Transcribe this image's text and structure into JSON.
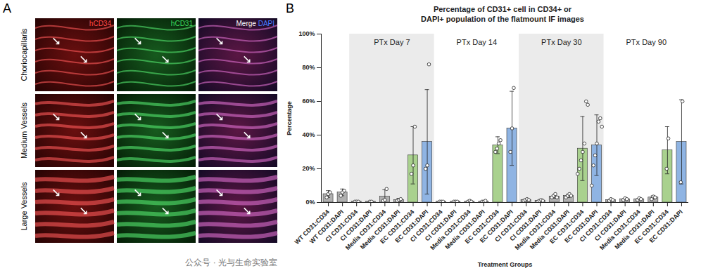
{
  "panel_a": {
    "letter": "A",
    "columns": [
      [
        {
          "text": "hCD34",
          "color": "#ff4a4a"
        }
      ],
      [
        {
          "text": "hCD31",
          "color": "#3ddc5a"
        }
      ],
      [
        {
          "text": "Merge ",
          "color": "#ffffff"
        },
        {
          "text": "DAPI",
          "color": "#4a7dff"
        }
      ]
    ],
    "rows": [
      "Choriocapillaris",
      "Medium Vessels",
      "Large Vessels"
    ]
  },
  "watermark": "公众号 · 光与生命实验室",
  "chart_data": {
    "type": "bar",
    "letter": "B",
    "title": "Percentage of CD31+ cell in CD34+ or DAPI+ population of the flatmount IF images",
    "x_label": "Treatment Groups",
    "y_label": "Percentage",
    "categories": [
      "WT CD31:CD34",
      "WT CD31:DAPI",
      "CI CD31:CD34",
      "CI CD31:DAPI",
      "Media CD31:CD34",
      "Media CD31:DAPI",
      "EC CD31:CD34",
      "EC CD31:DAPI",
      "CI CD31:CD34",
      "CI CD31:DAPI",
      "Media CD31:CD34",
      "Media CD31:DAPI",
      "EC CD31:CD34",
      "EC CD31:DAPI",
      "CI CD31:CD34",
      "CI CD31:DAPI",
      "Media CD31:CD34",
      "Media CD31:DAPI",
      "EC CD31:CD34",
      "EC CD31:DAPI",
      "CI CD31:CD34",
      "CI CD31:DAPI",
      "Media CD31:CD34",
      "Media CD31:DAPI",
      "EC CD31:CD34",
      "EC CD31:DAPI"
    ],
    "values": [
      5,
      6,
      0.5,
      0.5,
      3.5,
      1.5,
      28,
      36,
      0.5,
      0.5,
      0.5,
      0.5,
      34,
      44,
      1.5,
      1,
      3.5,
      4,
      32,
      34,
      1.5,
      2,
      2,
      3,
      31,
      36
    ],
    "errors": [
      2,
      2,
      0.3,
      0.3,
      4,
      1,
      17,
      31,
      0.3,
      0.3,
      0.3,
      0.3,
      5,
      22,
      0.5,
      0.5,
      1,
      1,
      19,
      18,
      0.5,
      0.5,
      0.5,
      1,
      14,
      25
    ],
    "points": [
      [
        3,
        5,
        6
      ],
      [
        4,
        6,
        7
      ],
      [
        0.5,
        0.5,
        0.5
      ],
      [
        0.5,
        0.5
      ],
      [
        1,
        1.5,
        8
      ],
      [
        1,
        1.5,
        2
      ],
      [
        17,
        22,
        45
      ],
      [
        20,
        22,
        82
      ],
      [
        0.5,
        0.5,
        0.5
      ],
      [
        0.5,
        0.5,
        0.5
      ],
      [
        0.5,
        1,
        0.5
      ],
      [
        0.5,
        0.5,
        1
      ],
      [
        30,
        32,
        35,
        37
      ],
      [
        30,
        44,
        68
      ],
      [
        1,
        1.5,
        2,
        1.5
      ],
      [
        0.5,
        1,
        1.5,
        1
      ],
      [
        3,
        4,
        5,
        3
      ],
      [
        3,
        4,
        5,
        4
      ],
      [
        17,
        20,
        25,
        30,
        35,
        60,
        58
      ],
      [
        10,
        22,
        28,
        35,
        48,
        50,
        45
      ],
      [
        1,
        2,
        1.5
      ],
      [
        1.5,
        2.5,
        2
      ],
      [
        1.5,
        2.5,
        2
      ],
      [
        2,
        3.5,
        3
      ],
      [
        20,
        38
      ],
      [
        12,
        60
      ]
    ],
    "colors": [
      "#b0b0b0",
      "#b0b0b0",
      "#b0b0b0",
      "#b0b0b0",
      "#b0b0b0",
      "#b0b0b0",
      "#a9d18e",
      "#8fb4e3",
      "#b0b0b0",
      "#b0b0b0",
      "#b0b0b0",
      "#b0b0b0",
      "#a9d18e",
      "#8fb4e3",
      "#b0b0b0",
      "#b0b0b0",
      "#b0b0b0",
      "#b0b0b0",
      "#a9d18e",
      "#8fb4e3",
      "#b0b0b0",
      "#b0b0b0",
      "#b0b0b0",
      "#b0b0b0",
      "#a9d18e",
      "#8fb4e3"
    ],
    "groups": [
      {
        "label": "PTx Day 7",
        "start": 2,
        "end": 7,
        "shaded": true
      },
      {
        "label": "PTx Day 14",
        "start": 8,
        "end": 13,
        "shaded": false
      },
      {
        "label": "PTx Day 30",
        "start": 14,
        "end": 19,
        "shaded": true
      },
      {
        "label": "PTx Day 90",
        "start": 20,
        "end": 25,
        "shaded": false
      }
    ],
    "ylim": [
      0,
      100
    ],
    "yticks": [
      {
        "value": 0,
        "label": "0%"
      },
      {
        "value": 20,
        "label": "20%"
      },
      {
        "value": 40,
        "label": "40%"
      },
      {
        "value": 60,
        "label": "60%"
      },
      {
        "value": 80,
        "label": "80%"
      },
      {
        "value": 100,
        "label": "100%"
      }
    ],
    "grid": false
  }
}
